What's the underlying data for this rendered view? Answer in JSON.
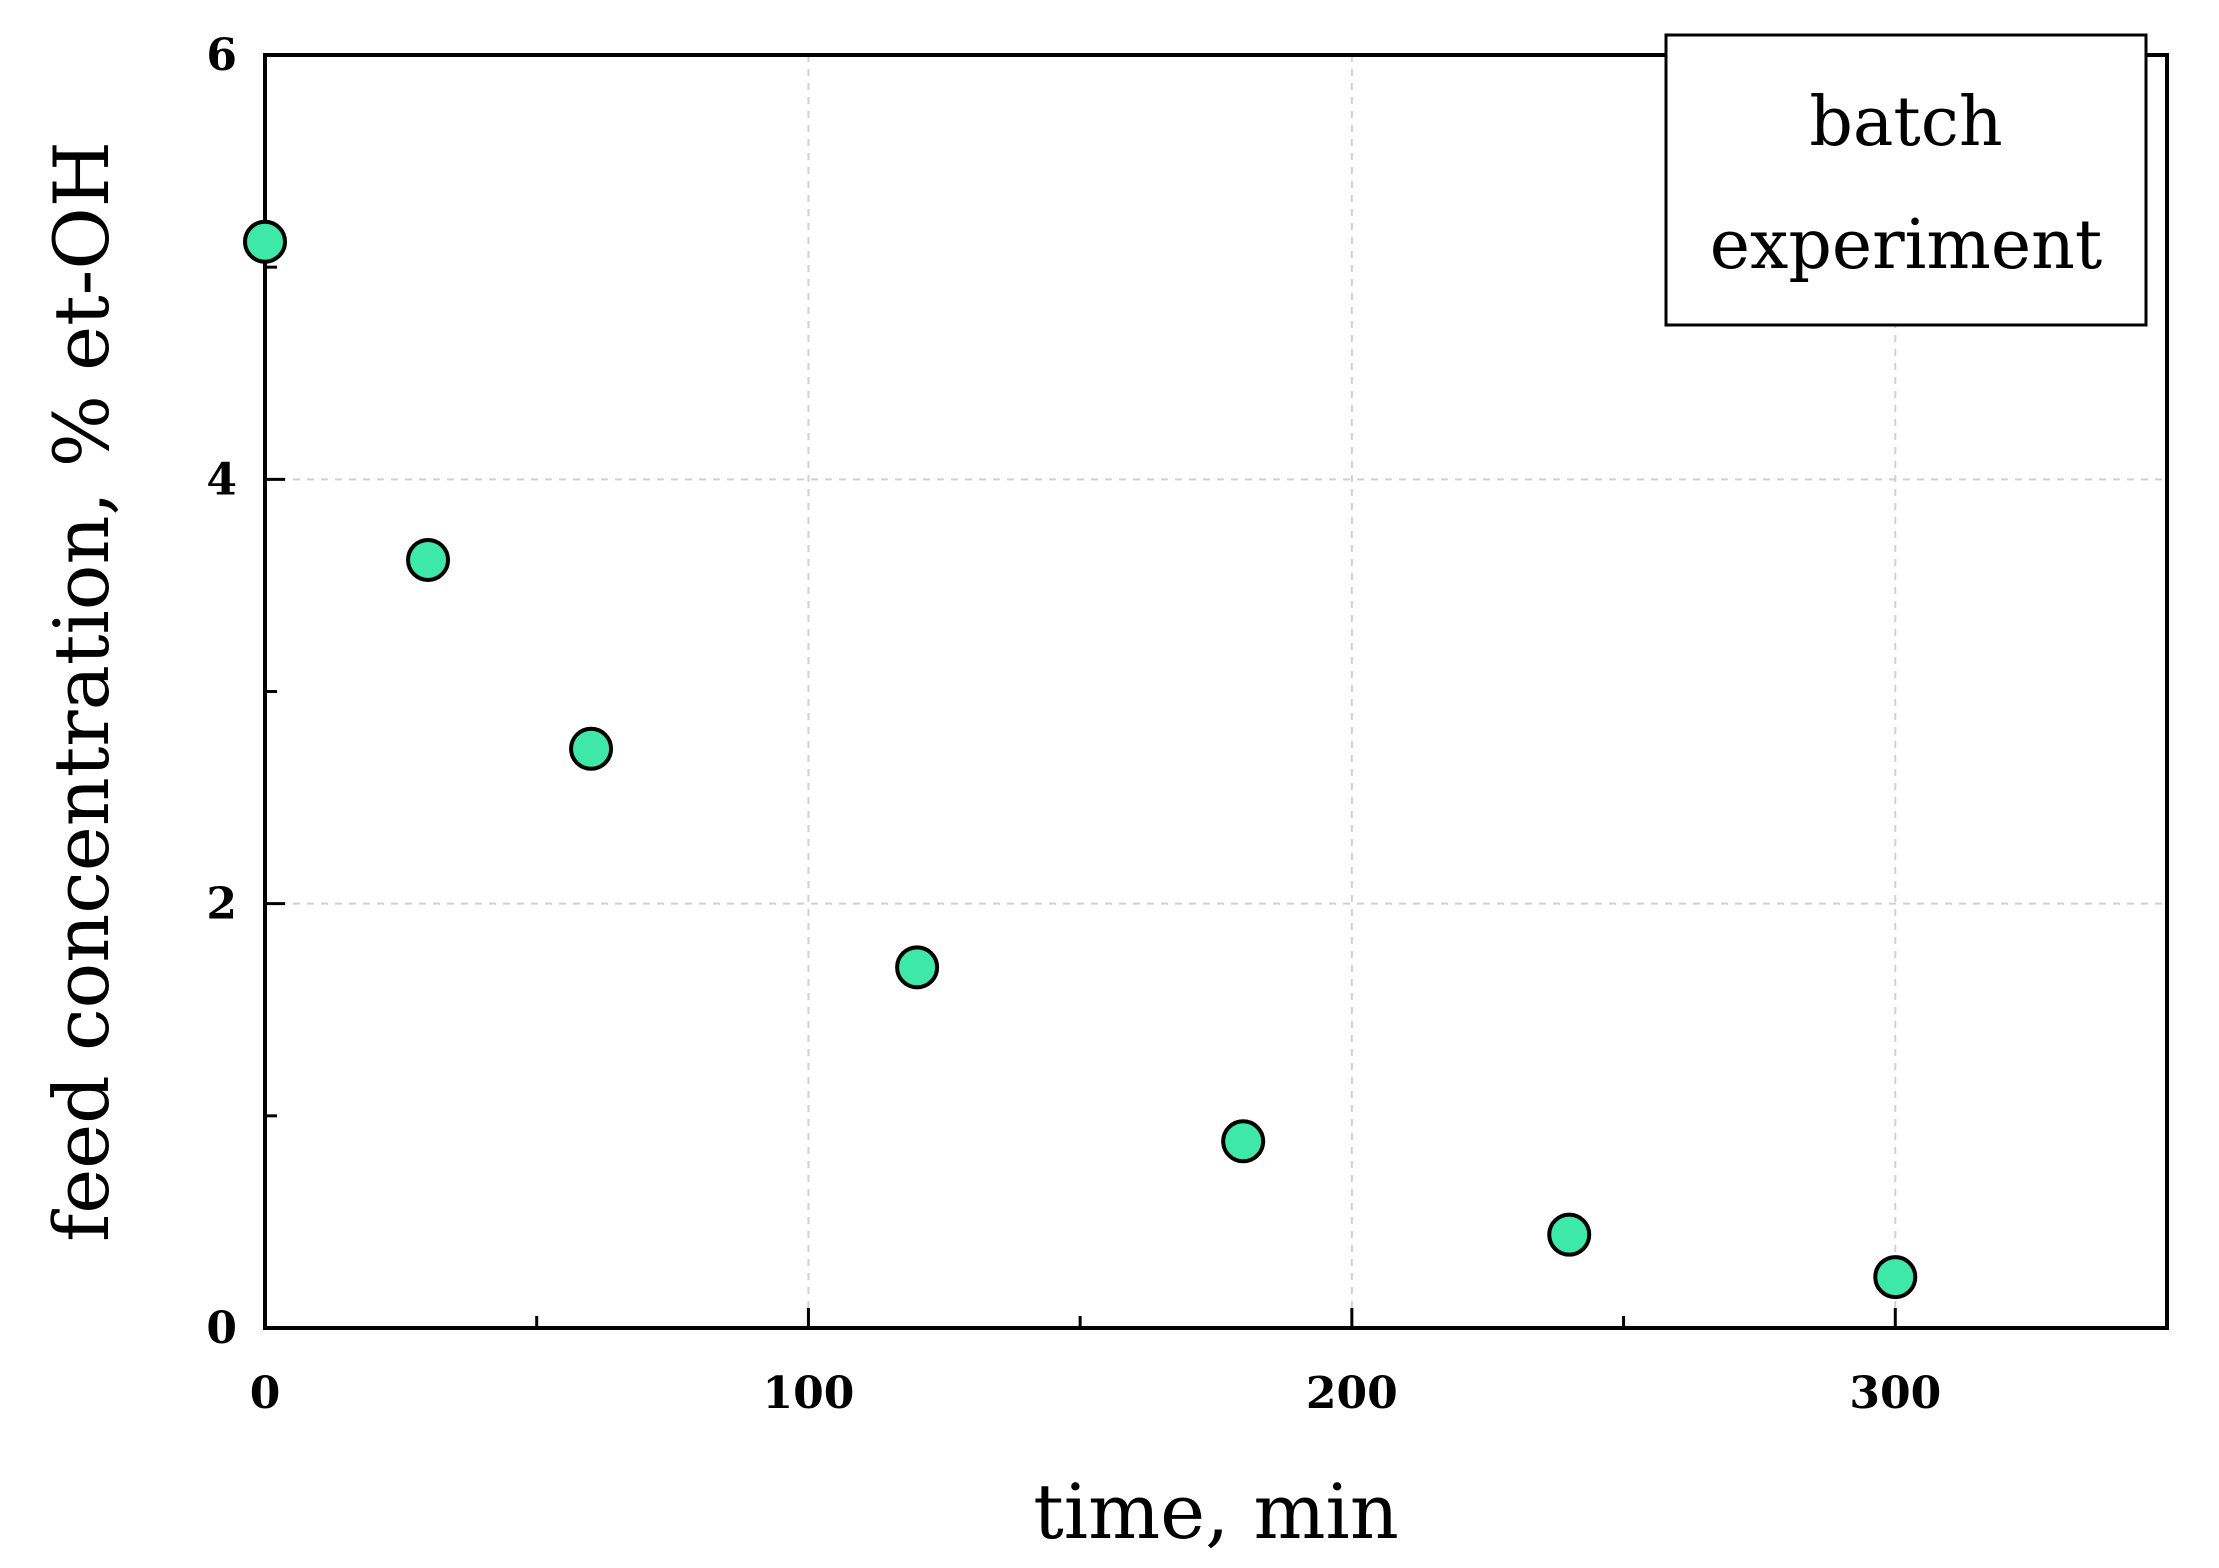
{
  "chart_data": {
    "type": "scatter",
    "title": "",
    "xlabel": "time, min",
    "ylabel": "feed concentration, % et-OH",
    "xlim": [
      0,
      350
    ],
    "ylim": [
      0,
      6
    ],
    "x_ticks": [
      0,
      100,
      200,
      300
    ],
    "x_tick_labels": [
      "0",
      "100",
      "200",
      "300"
    ],
    "x_minor_ticks": [
      50,
      150,
      250
    ],
    "y_ticks": [
      0,
      2,
      4,
      6
    ],
    "y_tick_labels": [
      "0",
      "2",
      "4",
      "6"
    ],
    "y_minor_ticks": [
      1,
      3,
      5
    ],
    "grid": true,
    "legend": {
      "placement": "top-right",
      "lines": [
        "batch",
        "experiment"
      ]
    },
    "series": [
      {
        "color": "#3ee8a8",
        "marker": "circle",
        "x": [
          0,
          30,
          60,
          120,
          180,
          240,
          300
        ],
        "y": [
          5.12,
          3.62,
          2.73,
          1.7,
          0.88,
          0.44,
          0.24
        ]
      }
    ]
  }
}
